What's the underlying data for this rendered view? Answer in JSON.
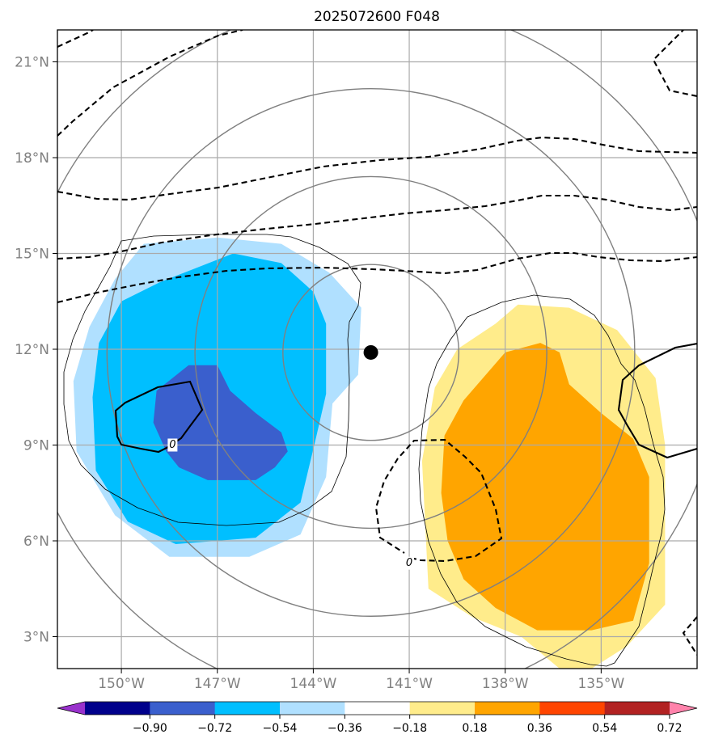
{
  "chart_data": {
    "type": "contour-map",
    "title": "2025072600 F048",
    "projection": "PlateCarree",
    "xlim": [
      -152,
      -132
    ],
    "ylim": [
      2,
      22
    ],
    "x_ticks": [
      -150,
      -147,
      -144,
      -141,
      -138,
      -135
    ],
    "x_tick_labels": [
      "150°W",
      "147°W",
      "144°W",
      "141°W",
      "138°W",
      "135°W"
    ],
    "y_ticks": [
      3,
      6,
      9,
      12,
      15,
      18,
      21
    ],
    "y_tick_labels": [
      "3°N",
      "6°N",
      "9°N",
      "12°N",
      "15°N",
      "18°N",
      "21°N"
    ],
    "grid": true,
    "grid_color": "#aaaaaa",
    "center_marker": {
      "lon": -142.2,
      "lat": 11.9
    },
    "range_rings": {
      "center_lon": -142.2,
      "center_lat": 11.9,
      "radii_deg": [
        2.75,
        5.5,
        8.25,
        11
      ],
      "color": "#808080"
    },
    "filled_levels": [
      -0.9,
      -0.72,
      -0.54,
      -0.36,
      -0.18,
      0.18,
      0.36,
      0.54,
      0.72,
      0.9
    ],
    "colors": [
      "#9932cc",
      "#00008b",
      "#3a5fcd",
      "#00bfff",
      "#b0e0ff",
      "#ffffff",
      "#ffec8b",
      "#ffa500",
      "#ff4500",
      "#b22222",
      "#ff82ab"
    ],
    "colorbar_tick_labels": [
      "−0.90",
      "−0.72",
      "−0.54",
      "−0.36",
      "−0.18",
      "0.18",
      "0.36",
      "0.54",
      "0.72",
      "0.90"
    ],
    "contour_labels": [
      {
        "text": "0",
        "lon": -148.4,
        "lat": 9.0
      },
      {
        "text": "0",
        "lon": -141.0,
        "lat": 5.3
      }
    ],
    "filled_regions": [
      {
        "level": "-0.36 to -0.18",
        "color": "#b0e0ff",
        "polygon": [
          [
            -149.3,
            15.3
          ],
          [
            -147,
            15.5
          ],
          [
            -145,
            15.3
          ],
          [
            -143.5,
            14.4
          ],
          [
            -142.5,
            13.3
          ],
          [
            -142.6,
            11.2
          ],
          [
            -143.4,
            10.3
          ],
          [
            -143.6,
            8.0
          ],
          [
            -144.4,
            6.2
          ],
          [
            -146,
            5.5
          ],
          [
            -148.5,
            5.5
          ],
          [
            -150.2,
            6.8
          ],
          [
            -151.4,
            8.8
          ],
          [
            -151.5,
            11
          ],
          [
            -151.0,
            12.7
          ],
          [
            -150.2,
            14.2
          ]
        ]
      },
      {
        "level": "-0.54 to -0.36",
        "color": "#00bfff",
        "polygon": [
          [
            -148.8,
            14.1
          ],
          [
            -146.5,
            15.0
          ],
          [
            -145,
            14.7
          ],
          [
            -144,
            13.8
          ],
          [
            -143.6,
            12.8
          ],
          [
            -143.6,
            10.6
          ],
          [
            -143.9,
            9.3
          ],
          [
            -144.4,
            7.2
          ],
          [
            -145.8,
            6.1
          ],
          [
            -148.3,
            5.9
          ],
          [
            -149.8,
            6.6
          ],
          [
            -150.8,
            8.2
          ],
          [
            -150.9,
            10.5
          ],
          [
            -150.7,
            12.2
          ],
          [
            -150.0,
            13.5
          ]
        ]
      },
      {
        "level": "-0.72 to -0.54",
        "color": "#3a5fcd",
        "polygon": [
          [
            -147.9,
            11.5
          ],
          [
            -147.0,
            11.5
          ],
          [
            -146.6,
            10.7
          ],
          [
            -145.8,
            10.0
          ],
          [
            -145.0,
            9.4
          ],
          [
            -144.8,
            8.8
          ],
          [
            -145.2,
            8.3
          ],
          [
            -145.8,
            7.9
          ],
          [
            -147.3,
            7.9
          ],
          [
            -148.2,
            8.3
          ],
          [
            -148.6,
            8.8
          ],
          [
            -149.0,
            9.7
          ],
          [
            -148.9,
            10.7
          ]
        ]
      },
      {
        "level": "0.18 to 0.36",
        "color": "#ffec8b",
        "polygon": [
          [
            -137.6,
            13.4
          ],
          [
            -136.0,
            13.3
          ],
          [
            -134.5,
            12.6
          ],
          [
            -133.3,
            11.1
          ],
          [
            -133.0,
            9.0
          ],
          [
            -133.0,
            6.0
          ],
          [
            -133.0,
            4.0
          ],
          [
            -134.2,
            2.7
          ],
          [
            -135.3,
            2.0
          ],
          [
            -136.3,
            2.0
          ],
          [
            -137.5,
            3.0
          ],
          [
            -139.0,
            3.6
          ],
          [
            -140.4,
            4.5
          ],
          [
            -140.5,
            6.5
          ],
          [
            -140.6,
            8.5
          ],
          [
            -140.2,
            10.8
          ],
          [
            -139.5,
            12.0
          ],
          [
            -138.3,
            12.8
          ]
        ]
      },
      {
        "level": "0.36 to 0.54",
        "color": "#ffa500",
        "polygon": [
          [
            -138.0,
            11.9
          ],
          [
            -136.9,
            12.2
          ],
          [
            -136.3,
            11.9
          ],
          [
            -136.0,
            10.9
          ],
          [
            -135.0,
            10.0
          ],
          [
            -134.0,
            9.2
          ],
          [
            -133.5,
            8.0
          ],
          [
            -133.5,
            5.3
          ],
          [
            -134.0,
            3.5
          ],
          [
            -135.3,
            3.2
          ],
          [
            -137.0,
            3.2
          ],
          [
            -138.3,
            3.9
          ],
          [
            -139.3,
            4.8
          ],
          [
            -139.8,
            6.0
          ],
          [
            -140.0,
            7.5
          ],
          [
            -139.9,
            9.3
          ],
          [
            -139.3,
            10.4
          ]
        ]
      }
    ]
  }
}
